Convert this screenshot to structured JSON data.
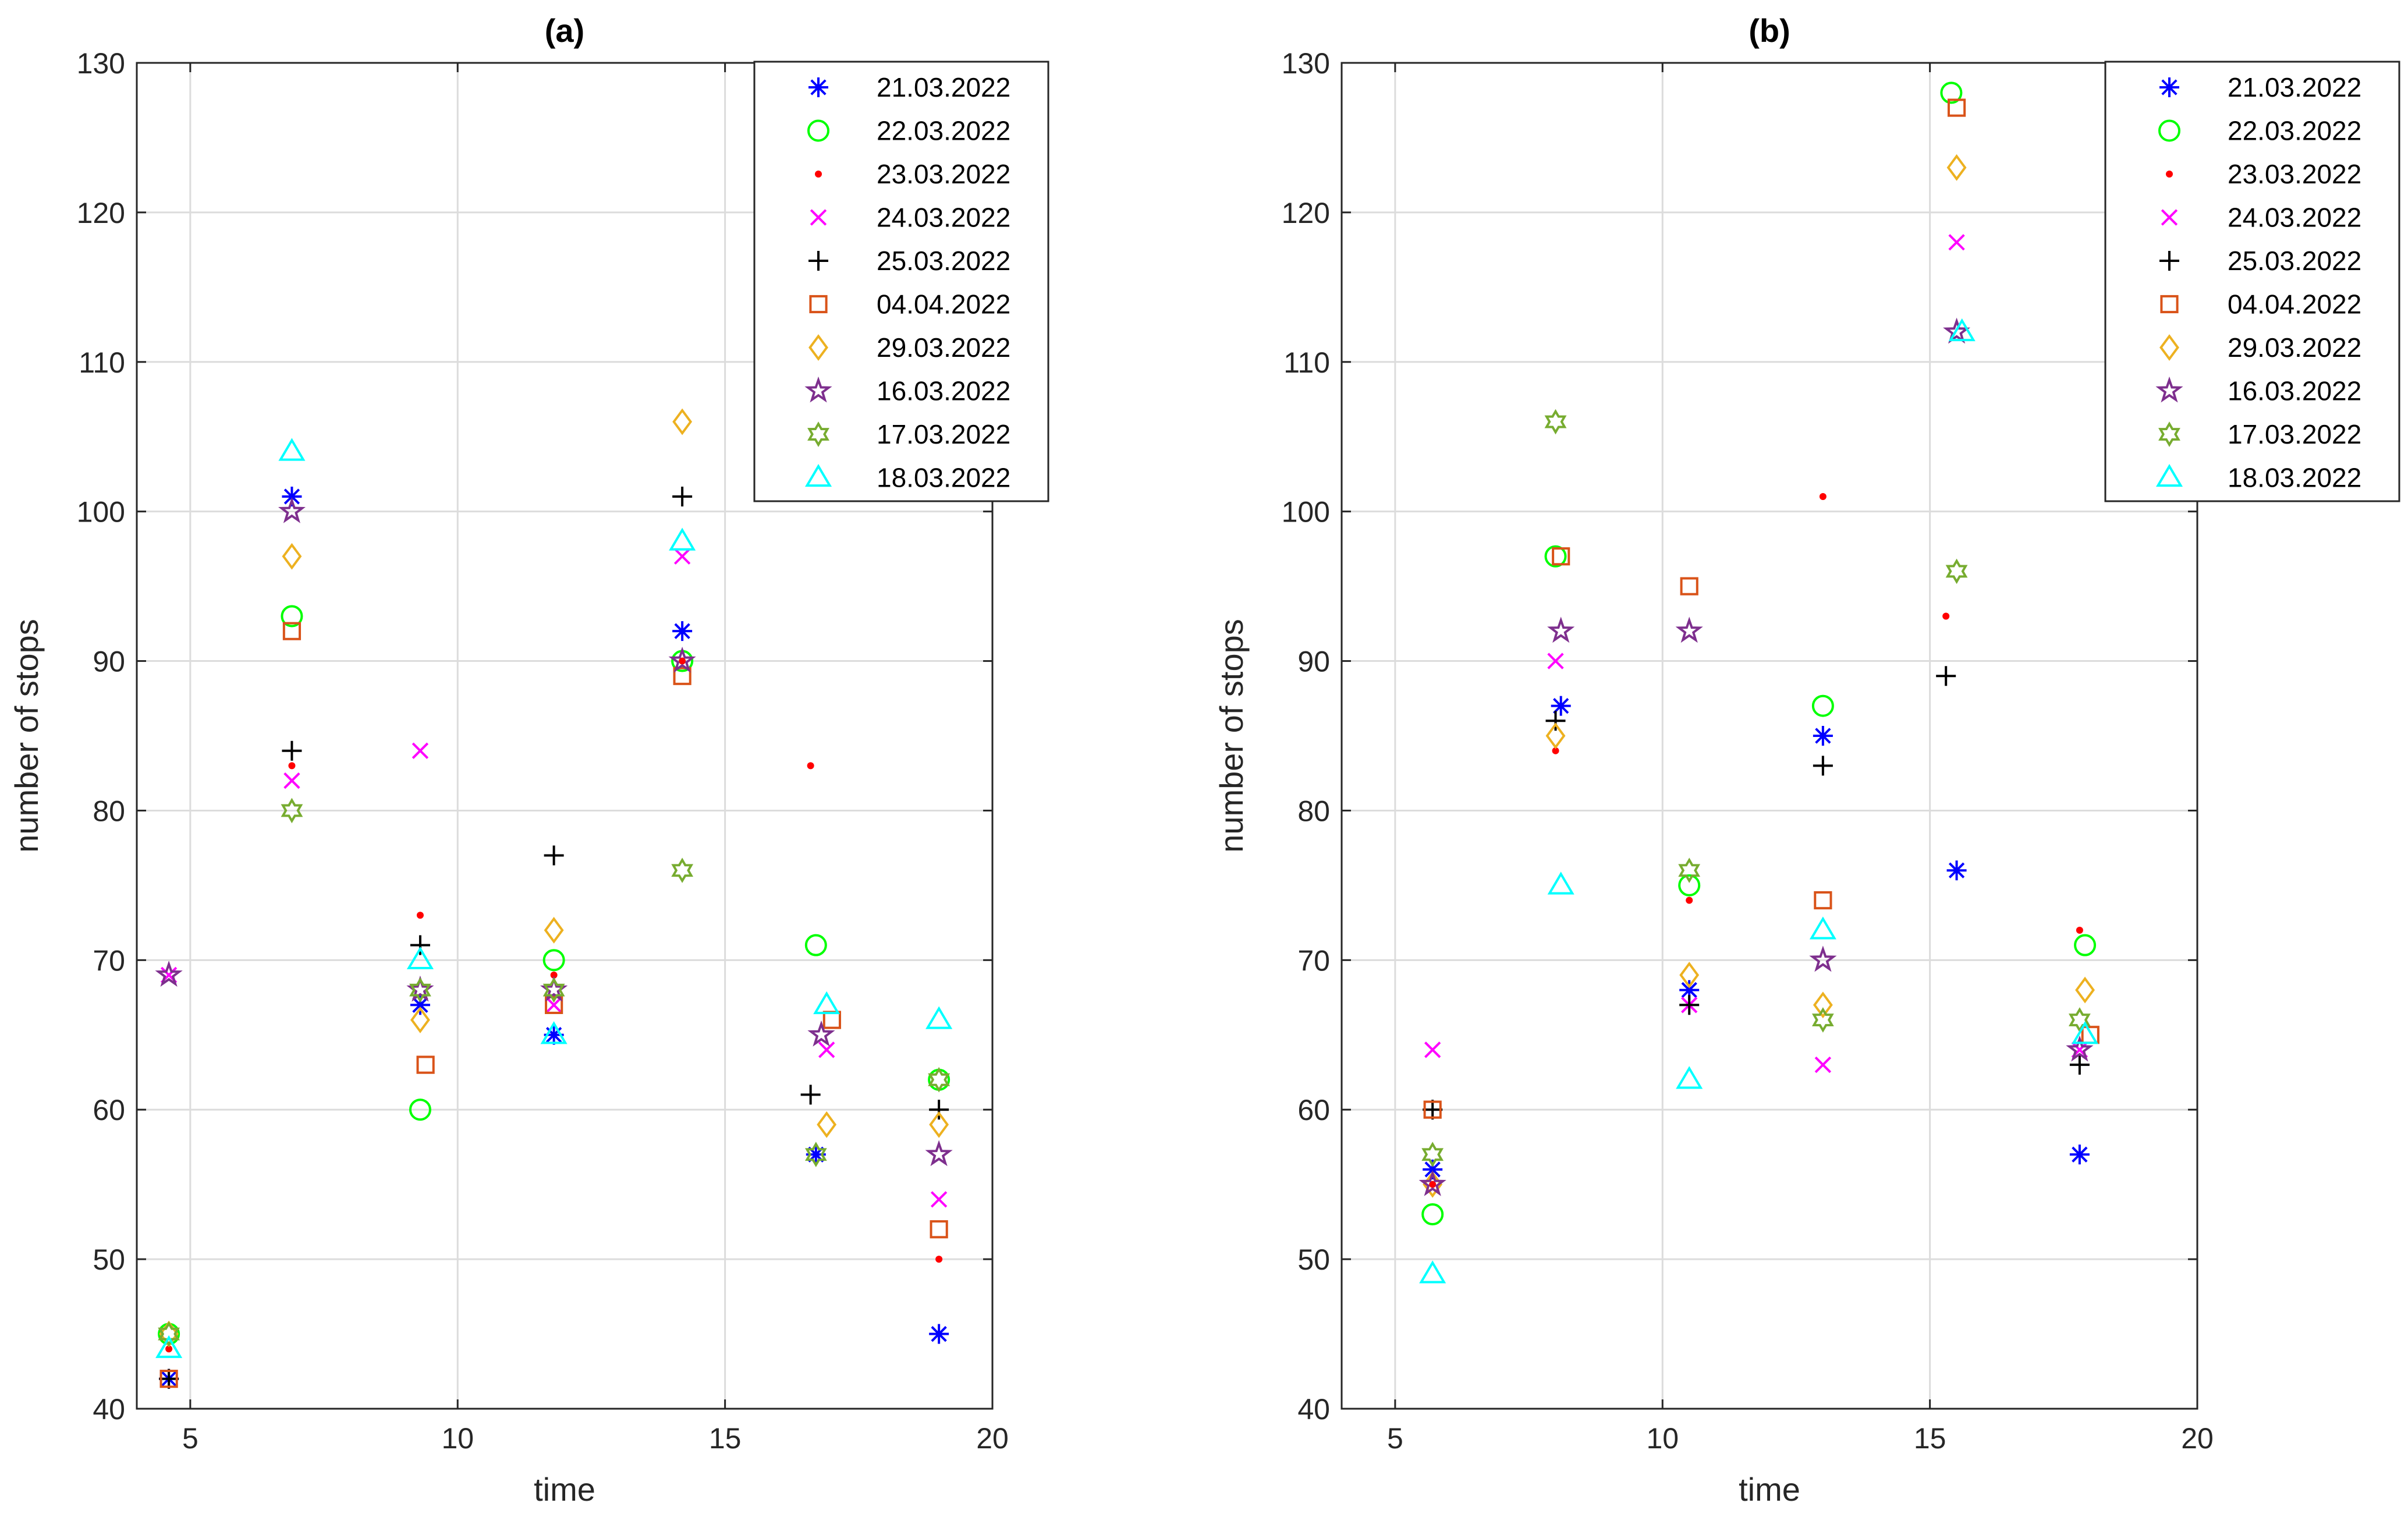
{
  "chart_data": [
    {
      "type": "scatter",
      "title": "(a)",
      "xlabel": "time",
      "ylabel": "number of stops",
      "xlim": [
        4,
        20
      ],
      "ylim": [
        40,
        130
      ],
      "xticks": [
        5,
        10,
        15,
        20
      ],
      "yticks": [
        40,
        50,
        60,
        70,
        80,
        90,
        100,
        110,
        120,
        130
      ],
      "grid": true,
      "legend_position": "top-right",
      "series": [
        {
          "name": "21.03.2022",
          "marker": "asterisk",
          "color": "#0000ff",
          "x": [
            4.6,
            6.9,
            9.3,
            11.8,
            14.2,
            16.7,
            19.0
          ],
          "y": [
            42,
            101,
            67,
            65,
            92,
            57,
            45
          ]
        },
        {
          "name": "22.03.2022",
          "marker": "circle",
          "color": "#00ff00",
          "x": [
            4.6,
            6.9,
            9.3,
            11.8,
            14.2,
            16.7,
            19.0
          ],
          "y": [
            45,
            93,
            60,
            70,
            90,
            71,
            62
          ]
        },
        {
          "name": "23.03.2022",
          "marker": "dot",
          "color": "#ff0000",
          "x": [
            4.6,
            6.9,
            9.3,
            11.8,
            14.2,
            16.6,
            19.0
          ],
          "y": [
            44,
            83,
            73,
            69,
            90,
            83,
            50
          ]
        },
        {
          "name": "24.03.2022",
          "marker": "x",
          "color": "#ff00ff",
          "x": [
            4.6,
            6.9,
            9.3,
            11.8,
            14.2,
            16.9,
            19.0
          ],
          "y": [
            69,
            82,
            84,
            67,
            97,
            64,
            54
          ]
        },
        {
          "name": "25.03.2022",
          "marker": "plus",
          "color": "#000000",
          "x": [
            4.6,
            6.9,
            9.3,
            11.8,
            14.2,
            16.6,
            19.0
          ],
          "y": [
            42,
            84,
            71,
            77,
            101,
            61,
            60
          ]
        },
        {
          "name": "04.04.2022",
          "marker": "square",
          "color": "#d95319",
          "x": [
            4.6,
            6.9,
            9.4,
            11.8,
            14.2,
            17.0,
            19.0
          ],
          "y": [
            42,
            92,
            63,
            67,
            89,
            66,
            52
          ]
        },
        {
          "name": "29.03.2022",
          "marker": "diamond",
          "color": "#edb120",
          "x": [
            4.6,
            6.9,
            9.3,
            11.8,
            14.2,
            16.9,
            19.0
          ],
          "y": [
            45,
            97,
            66,
            72,
            106,
            59,
            59
          ]
        },
        {
          "name": "16.03.2022",
          "marker": "pentagram",
          "color": "#7e2f8e",
          "x": [
            4.6,
            6.9,
            9.3,
            11.8,
            14.2,
            16.8,
            19.0
          ],
          "y": [
            69,
            100,
            68,
            68,
            90,
            65,
            57
          ]
        },
        {
          "name": "17.03.2022",
          "marker": "hexagram",
          "color": "#77ac30",
          "x": [
            4.6,
            6.9,
            9.3,
            11.8,
            14.2,
            16.7,
            19.0
          ],
          "y": [
            45,
            80,
            68,
            68,
            76,
            57,
            62
          ]
        },
        {
          "name": "18.03.2022",
          "marker": "triangle",
          "color": "#00ffff",
          "x": [
            4.6,
            6.9,
            9.3,
            11.8,
            14.2,
            16.9,
            19.0
          ],
          "y": [
            44,
            104,
            70,
            65,
            98,
            67,
            66
          ]
        }
      ]
    },
    {
      "type": "scatter",
      "title": "(b)",
      "xlabel": "time",
      "ylabel": "number of stops",
      "xlim": [
        4,
        20
      ],
      "ylim": [
        40,
        130
      ],
      "xticks": [
        5,
        10,
        15,
        20
      ],
      "yticks": [
        40,
        50,
        60,
        70,
        80,
        90,
        100,
        110,
        120,
        130
      ],
      "grid": true,
      "legend_position": "top-right",
      "series": [
        {
          "name": "21.03.2022",
          "marker": "asterisk",
          "color": "#0000ff",
          "x": [
            5.7,
            8.1,
            10.5,
            13.0,
            15.5,
            17.8
          ],
          "y": [
            56,
            87,
            68,
            85,
            76,
            57
          ]
        },
        {
          "name": "22.03.2022",
          "marker": "circle",
          "color": "#00ff00",
          "x": [
            5.7,
            8.0,
            10.5,
            13.0,
            15.4,
            17.9
          ],
          "y": [
            53,
            97,
            75,
            87,
            128,
            71
          ]
        },
        {
          "name": "23.03.2022",
          "marker": "dot",
          "color": "#ff0000",
          "x": [
            5.7,
            8.0,
            10.5,
            13.0,
            15.3,
            17.8
          ],
          "y": [
            55,
            84,
            74,
            101,
            93,
            72
          ]
        },
        {
          "name": "24.03.2022",
          "marker": "x",
          "color": "#ff00ff",
          "x": [
            5.7,
            8.0,
            10.5,
            13.0,
            15.5,
            17.8
          ],
          "y": [
            64,
            90,
            67,
            63,
            118,
            64
          ]
        },
        {
          "name": "25.03.2022",
          "marker": "plus",
          "color": "#000000",
          "x": [
            5.7,
            8.0,
            10.5,
            13.0,
            15.3,
            17.8
          ],
          "y": [
            60,
            86,
            67,
            83,
            89,
            63
          ]
        },
        {
          "name": "04.04.2022",
          "marker": "square",
          "color": "#d95319",
          "x": [
            5.7,
            8.1,
            10.5,
            13.0,
            15.5,
            18.0
          ],
          "y": [
            60,
            97,
            95,
            74,
            127,
            65
          ]
        },
        {
          "name": "29.03.2022",
          "marker": "diamond",
          "color": "#edb120",
          "x": [
            5.7,
            8.0,
            10.5,
            13.0,
            15.5,
            17.9
          ],
          "y": [
            55,
            85,
            69,
            67,
            123,
            68
          ]
        },
        {
          "name": "16.03.2022",
          "marker": "pentagram",
          "color": "#7e2f8e",
          "x": [
            5.7,
            8.1,
            10.5,
            13.0,
            15.5,
            17.8
          ],
          "y": [
            55,
            92,
            92,
            70,
            112,
            64
          ]
        },
        {
          "name": "17.03.2022",
          "marker": "hexagram",
          "color": "#77ac30",
          "x": [
            5.7,
            8.0,
            10.5,
            13.0,
            15.5,
            17.8
          ],
          "y": [
            57,
            106,
            76,
            66,
            96,
            66
          ]
        },
        {
          "name": "18.03.2022",
          "marker": "triangle",
          "color": "#00ffff",
          "x": [
            5.7,
            8.1,
            10.5,
            13.0,
            15.6,
            17.9
          ],
          "y": [
            49,
            75,
            62,
            72,
            112,
            65
          ]
        }
      ]
    }
  ]
}
